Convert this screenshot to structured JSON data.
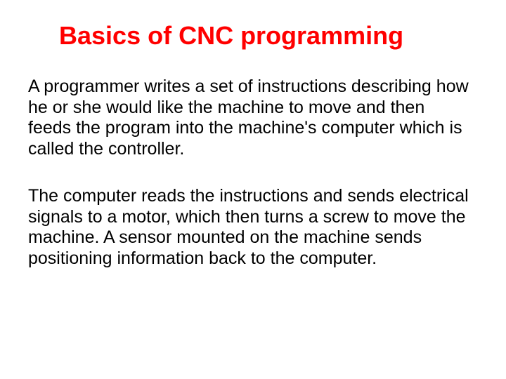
{
  "colors": {
    "title_color": "#ff0000",
    "body_color": "#000000",
    "background": "#ffffff"
  },
  "typography": {
    "title_fontsize": 36,
    "body_fontsize": 25,
    "title_weight": "bold",
    "body_weight": "normal",
    "font_family": "Arial"
  },
  "title": "Basics of CNC programming",
  "paragraph1": "A programmer writes a set of instructions describing how he or she would like the machine to move and then feeds the program into the machine's computer which is called the controller.",
  "paragraph2": "The computer reads the instructions and sends electrical signals to a motor, which then turns a screw to move the machine. A sensor mounted on the machine sends positioning information back to the computer."
}
